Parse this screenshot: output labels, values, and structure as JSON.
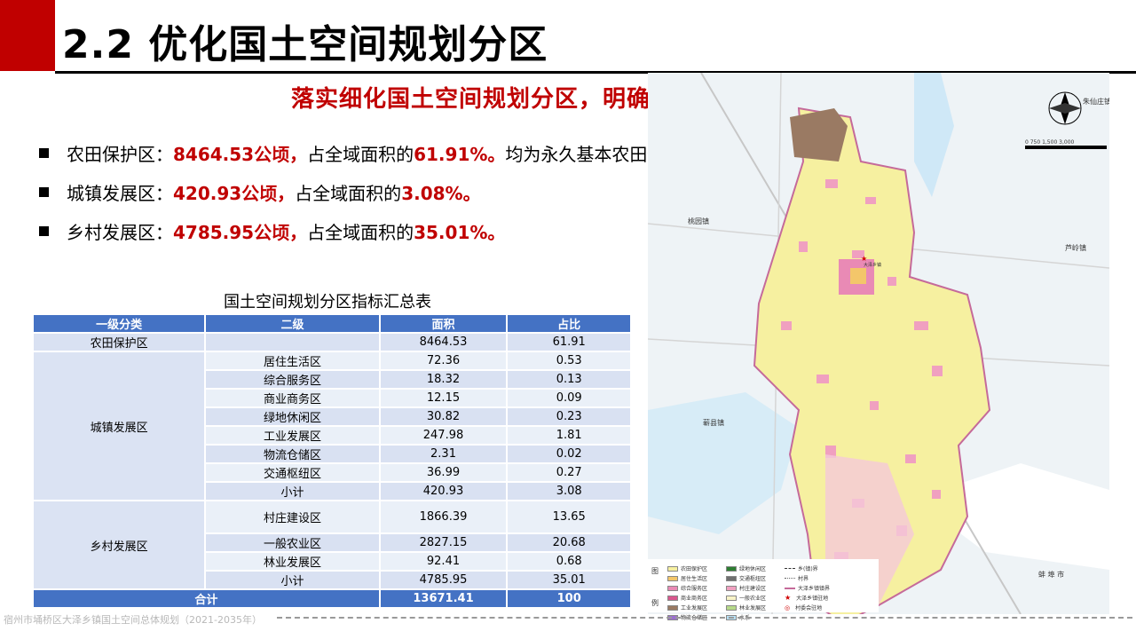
{
  "header": {
    "title": "2.2 优化国土空间规划分区"
  },
  "subtitle": "落实细化国土空间规划分区，明确分区管控规则",
  "bullets": [
    {
      "label": "农田保护区：",
      "value": "8464.53公顷，",
      "mid": "占全域面积的",
      "pct": "61.91%。",
      "tail": "均为永久基本农田保护区。"
    },
    {
      "label": "城镇发展区：",
      "value": "420.93公顷，",
      "mid": "占全域面积的",
      "pct": "3.08%。",
      "tail": ""
    },
    {
      "label": "乡村发展区：",
      "value": "4785.95公顷，",
      "mid": "占全域面积的",
      "pct": "35.01%。",
      "tail": ""
    }
  ],
  "table": {
    "title": "国土空间规划分区指标汇总表",
    "headers": [
      "一级分类",
      "二级",
      "面积",
      "占比"
    ],
    "farm": {
      "name": "农田保护区",
      "area": "8464.53",
      "pct": "61.91"
    },
    "urban": {
      "name": "城镇发展区",
      "rows": [
        {
          "name": "居住生活区",
          "area": "72.36",
          "pct": "0.53"
        },
        {
          "name": "综合服务区",
          "area": "18.32",
          "pct": "0.13"
        },
        {
          "name": "商业商务区",
          "area": "12.15",
          "pct": "0.09"
        },
        {
          "name": "绿地休闲区",
          "area": "30.82",
          "pct": "0.23"
        },
        {
          "name": "工业发展区",
          "area": "247.98",
          "pct": "1.81"
        },
        {
          "name": "物流仓储区",
          "area": "2.31",
          "pct": "0.02"
        },
        {
          "name": "交通枢纽区",
          "area": "36.99",
          "pct": "0.27"
        },
        {
          "name": "小计",
          "area": "420.93",
          "pct": "3.08"
        }
      ]
    },
    "rural": {
      "name": "乡村发展区",
      "rows": [
        {
          "name": "村庄建设区",
          "area": "1866.39",
          "pct": "13.65"
        },
        {
          "name": "一般农业区",
          "area": "2827.15",
          "pct": "20.68"
        },
        {
          "name": "林业发展区",
          "area": "92.41",
          "pct": "0.68"
        },
        {
          "name": "小计",
          "area": "4785.95",
          "pct": "35.01"
        }
      ]
    },
    "total": {
      "name": "合计",
      "area": "13671.41",
      "pct": "100"
    }
  },
  "map": {
    "labels": {
      "zhuxianzhuang": "朱仙庄镇",
      "taoyuan": "桃园镇",
      "luxian": "芦岭镇",
      "qixian": "蕲县镇",
      "bengbu": "蚌 埠 市",
      "town": "大泽乡镇"
    },
    "scale_text": "0   750 1,500    3,000",
    "legend_label_top": "图",
    "legend_label_bottom": "例",
    "legend": [
      {
        "name": "农田保护区",
        "color": "#f6f0a0"
      },
      {
        "name": "居住生活区",
        "color": "#f3c66a"
      },
      {
        "name": "综合服务区",
        "color": "#e98ab5"
      },
      {
        "name": "商业商务区",
        "color": "#d9578e"
      },
      {
        "name": "工业发展区",
        "color": "#9a7a63"
      },
      {
        "name": "物流仓储区",
        "color": "#9b6ed0"
      },
      {
        "name": "绿地休闲区",
        "color": "#2e7d32"
      },
      {
        "name": "交通枢纽区",
        "color": "#707070"
      },
      {
        "name": "村庄建设区",
        "color": "#f0a0c0"
      },
      {
        "name": "一般农业区",
        "color": "#f8f4c8"
      },
      {
        "name": "林业发展区",
        "color": "#b6d98a"
      },
      {
        "name": "水系",
        "color": "#b7e0f5"
      },
      {
        "name": "乡(镇)界",
        "color": "#ffffff"
      },
      {
        "name": "村界",
        "color": "#ffffff"
      },
      {
        "name": "大泽乡镇镇界",
        "color": "#ffffff"
      },
      {
        "name": "大泽乡镇驻地",
        "color": "#ffffff"
      },
      {
        "name": "村委会驻地",
        "color": "#ffffff"
      }
    ]
  },
  "footer": "宿州市埇桥区大泽乡镇国土空间总体规划（2021-2035年）"
}
